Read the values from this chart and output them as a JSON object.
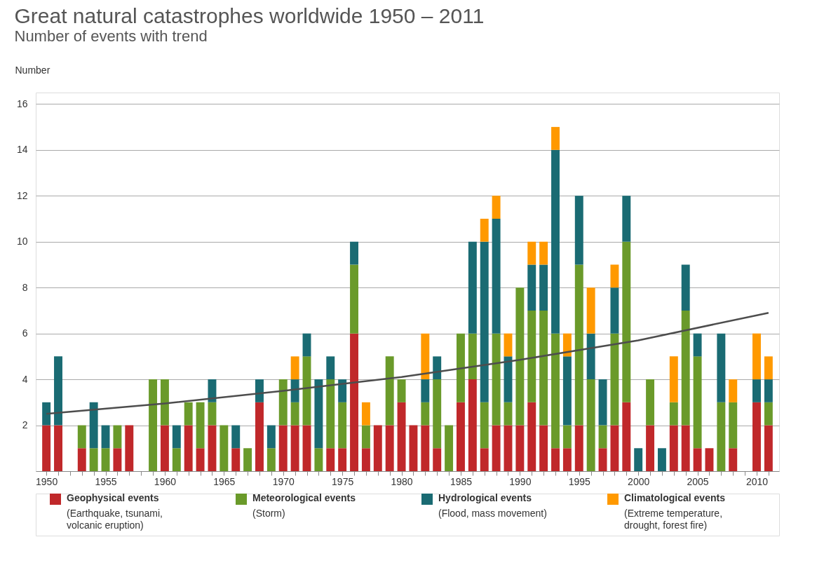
{
  "chart_data": {
    "type": "bar",
    "title": "Great natural catastrophes worldwide 1950 – 2011",
    "subtitle": "Number of events with trend",
    "ylabel": "Number",
    "x": [
      1950,
      1951,
      1952,
      1953,
      1954,
      1955,
      1956,
      1957,
      1958,
      1959,
      1960,
      1961,
      1962,
      1963,
      1964,
      1965,
      1966,
      1967,
      1968,
      1969,
      1970,
      1971,
      1972,
      1973,
      1974,
      1975,
      1976,
      1977,
      1978,
      1979,
      1980,
      1981,
      1982,
      1983,
      1984,
      1985,
      1986,
      1987,
      1988,
      1989,
      1990,
      1991,
      1992,
      1993,
      1994,
      1995,
      1996,
      1997,
      1998,
      1999,
      2000,
      2001,
      2002,
      2003,
      2004,
      2005,
      2006,
      2007,
      2008,
      2009,
      2010,
      2011
    ],
    "stacked": true,
    "series": [
      {
        "name": "Geophysical events",
        "color": "#c0282a",
        "values": [
          2,
          2,
          0,
          1,
          0,
          0,
          1,
          2,
          0,
          0,
          2,
          0,
          2,
          1,
          2,
          0,
          1,
          0,
          3,
          0,
          2,
          2,
          2,
          0,
          1,
          1,
          6,
          1,
          2,
          2,
          3,
          2,
          2,
          1,
          0,
          3,
          4,
          1,
          2,
          2,
          2,
          3,
          2,
          1,
          1,
          2,
          0,
          1,
          2,
          3,
          0,
          2,
          0,
          2,
          2,
          1,
          1,
          0,
          1,
          0,
          3,
          2
        ]
      },
      {
        "name": "Meteorological events",
        "color": "#6a9a2a",
        "values": [
          0,
          0,
          0,
          1,
          1,
          1,
          1,
          0,
          0,
          4,
          2,
          1,
          1,
          2,
          1,
          2,
          0,
          1,
          0,
          1,
          2,
          1,
          3,
          1,
          3,
          2,
          3,
          1,
          0,
          3,
          1,
          0,
          1,
          3,
          2,
          3,
          2,
          2,
          4,
          1,
          6,
          4,
          5,
          5,
          1,
          7,
          4,
          1,
          4,
          7,
          0,
          2,
          0,
          1,
          5,
          4,
          0,
          3,
          2,
          0,
          0,
          1
        ]
      },
      {
        "name": "Hydrological events",
        "color": "#1a6b73",
        "values": [
          1,
          3,
          0,
          0,
          2,
          1,
          0,
          0,
          0,
          0,
          0,
          1,
          0,
          0,
          1,
          0,
          1,
          0,
          1,
          1,
          0,
          1,
          1,
          3,
          1,
          1,
          1,
          0,
          0,
          0,
          0,
          0,
          1,
          1,
          0,
          0,
          4,
          7,
          5,
          2,
          0,
          2,
          2,
          8,
          3,
          3,
          2,
          2,
          2,
          2,
          1,
          0,
          1,
          0,
          2,
          1,
          0,
          3,
          0,
          0,
          1,
          1
        ]
      },
      {
        "name": "Climatological events",
        "color": "#ff9900",
        "values": [
          0,
          0,
          0,
          0,
          0,
          0,
          0,
          0,
          0,
          0,
          0,
          0,
          0,
          0,
          0,
          0,
          0,
          0,
          0,
          0,
          0,
          1,
          0,
          0,
          0,
          0,
          0,
          1,
          0,
          0,
          0,
          0,
          2,
          0,
          0,
          0,
          0,
          1,
          1,
          1,
          0,
          1,
          1,
          1,
          1,
          0,
          2,
          0,
          1,
          0,
          0,
          0,
          0,
          2,
          0,
          0,
          0,
          0,
          1,
          0,
          2,
          1
        ]
      },
      {
        "type": "line",
        "color": "#4d4d4d",
        "x": [
          1950,
          1960,
          1970,
          1980,
          1990,
          2000,
          2011
        ],
        "values": [
          2.5,
          2.95,
          3.5,
          4.1,
          4.85,
          5.7,
          6.9
        ]
      }
    ],
    "annotations": [
      "(Earthquake, tsunami, volcanic eruption)",
      "(Storm)",
      "(Flood, mass movement)",
      "(Extreme temperature, drought, forest fire)"
    ],
    "xlim": [
      1949.4,
      2011.6
    ],
    "xticks": [
      1950,
      {
        "value": 1951,
        "label": null
      },
      {
        "value": 1952,
        "label": null
      },
      {
        "value": 1953,
        "label": null
      },
      {
        "value": 1954,
        "label": null
      },
      1955,
      {
        "value": 1956,
        "label": null
      },
      {
        "value": 1957,
        "label": null
      },
      {
        "value": 1958,
        "label": null
      },
      {
        "value": 1959,
        "label": null
      },
      1960,
      {
        "value": 1961,
        "label": null
      },
      {
        "value": 1962,
        "label": null
      },
      {
        "value": 1963,
        "label": null
      },
      {
        "value": 1964,
        "label": null
      },
      1965,
      {
        "value": 1966,
        "label": null
      },
      {
        "value": 1967,
        "label": null
      },
      {
        "value": 1968,
        "label": null
      },
      {
        "value": 1969,
        "label": null
      },
      1970,
      {
        "value": 1971,
        "label": null
      },
      {
        "value": 1972,
        "label": null
      },
      {
        "value": 1973,
        "label": null
      },
      {
        "value": 1974,
        "label": null
      },
      1975,
      {
        "value": 1976,
        "label": null
      },
      {
        "value": 1977,
        "label": null
      },
      {
        "value": 1978,
        "label": null
      },
      {
        "value": 1979,
        "label": null
      },
      1980,
      {
        "value": 1981,
        "label": null
      },
      {
        "value": 1982,
        "label": null
      },
      {
        "value": 1983,
        "label": null
      },
      {
        "value": 1984,
        "label": null
      },
      1985,
      {
        "value": 1986,
        "label": null
      },
      {
        "value": 1987,
        "label": null
      },
      {
        "value": 1988,
        "label": null
      },
      {
        "value": 1989,
        "label": null
      },
      1990,
      {
        "value": 1991,
        "label": null
      },
      {
        "value": 1992,
        "label": null
      },
      {
        "value": 1993,
        "label": null
      },
      {
        "value": 1994,
        "label": null
      },
      1995,
      {
        "value": 1996,
        "label": null
      },
      {
        "value": 1997,
        "label": null
      },
      {
        "value": 1998,
        "label": null
      },
      {
        "value": 1999,
        "label": null
      },
      2000,
      {
        "value": 2001,
        "label": null
      },
      {
        "value": 2002,
        "label": null
      },
      {
        "value": 2003,
        "label": null
      },
      {
        "value": 2004,
        "label": null
      },
      2005,
      {
        "value": 2006,
        "label": null
      },
      {
        "value": 2007,
        "label": null
      },
      {
        "value": 2008,
        "label": null
      },
      {
        "value": 2009,
        "label": null
      },
      2010,
      {
        "value": 2011,
        "label": null
      }
    ],
    "ylim": [
      0,
      16.5
    ],
    "yticks": [
      2,
      4,
      6,
      8,
      10,
      12,
      14,
      16
    ],
    "grid": "y",
    "legend": "bottom"
  }
}
